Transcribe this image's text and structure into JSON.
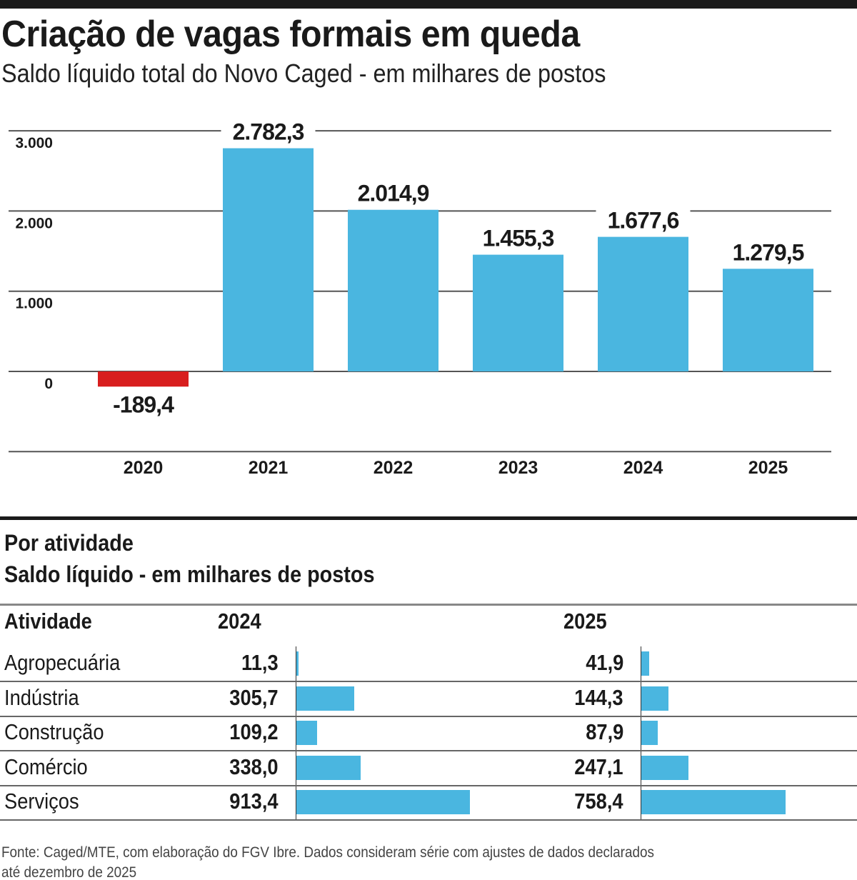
{
  "title": "Criação de vagas formais em queda",
  "subtitle": "Saldo líquido total do Novo Caged - em milhares de postos",
  "colors": {
    "positive": "#4ab6e0",
    "negative": "#d81e1e",
    "text": "#1a1a1a",
    "grid": "#555555"
  },
  "chart_data": [
    {
      "type": "bar",
      "categories": [
        "2020",
        "2021",
        "2022",
        "2023",
        "2024",
        "2025"
      ],
      "values": [
        -189.4,
        2782.3,
        2014.9,
        1455.3,
        1677.6,
        1279.5
      ],
      "value_labels": [
        "-189,4",
        "2.782,3",
        "2.014,9",
        "1.455,3",
        "1.677,6",
        "1.279,5"
      ],
      "yticks": [
        3000,
        2000,
        1000,
        0
      ],
      "ytick_labels": [
        "3.000",
        "2.000",
        "1.000",
        "0"
      ],
      "ylim": [
        -1000,
        3000
      ],
      "grid": true
    },
    {
      "type": "bar",
      "orientation": "horizontal",
      "title": "Por atividade",
      "subtitle": "Saldo líquido  - em milhares de postos",
      "header": [
        "Atividade",
        "2024",
        "2025"
      ],
      "rows": [
        {
          "label": "Agropecuária",
          "v2024": 11.3,
          "t2024": "11,3",
          "v2025": 41.9,
          "t2025": "41,9"
        },
        {
          "label": "Indústria",
          "v2024": 305.7,
          "t2024": "305,7",
          "v2025": 144.3,
          "t2025": "144,3"
        },
        {
          "label": "Construção",
          "v2024": 109.2,
          "t2024": "109,2",
          "v2025": 87.9,
          "t2025": "87,9"
        },
        {
          "label": "Comércio",
          "v2024": 338.0,
          "t2024": "338,0",
          "v2025": 247.1,
          "t2025": "247,1"
        },
        {
          "label": "Serviços",
          "v2024": 913.4,
          "t2024": "913,4",
          "v2025": 758.4,
          "t2025": "758,4"
        }
      ]
    }
  ],
  "footer": "Fonte: Caged/MTE, com elaboração do FGV Ibre. Dados consideram série com ajustes de dados declarados até dezembro de 2025"
}
